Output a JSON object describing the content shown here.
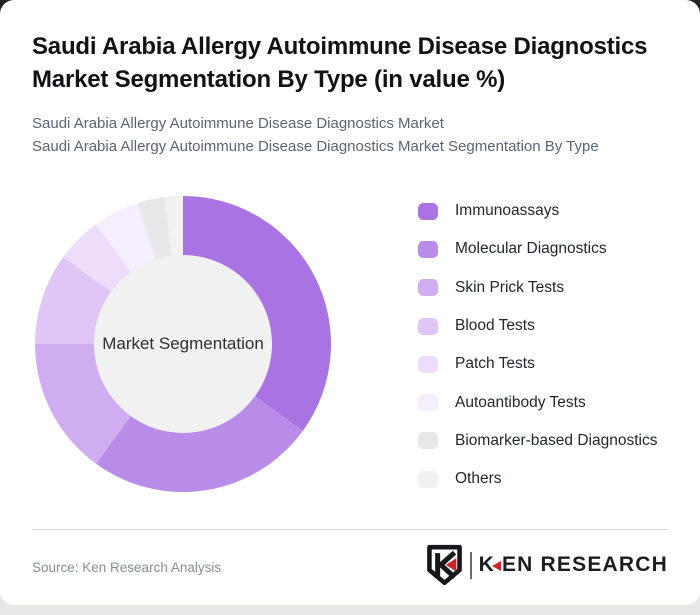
{
  "header": {
    "title": "Saudi Arabia Allergy Autoimmune Disease Diagnostics Market Segmentation By Type (in value %)",
    "subtitle_line1": "Saudi Arabia Allergy Autoimmune Disease Diagnostics Market",
    "subtitle_line2": "Saudi Arabia Allergy Autoimmune Disease Diagnostics Market Segmentation By Type"
  },
  "chart_data": {
    "type": "pie",
    "variant": "donut",
    "unit": "value %",
    "center_label": "Market Segmentation",
    "start_angle_deg": 0,
    "direction": "clockwise",
    "legend_position": "right",
    "hole_color": "#f2f1f1",
    "segments": [
      {
        "label": "Immunoassays",
        "value": 35,
        "color": "#a973e3"
      },
      {
        "label": "Molecular Diagnostics",
        "value": 25,
        "color": "#ba8ce9"
      },
      {
        "label": "Skin Prick Tests",
        "value": 15,
        "color": "#d0adf0"
      },
      {
        "label": "Blood Tests",
        "value": 10,
        "color": "#dfc6f6"
      },
      {
        "label": "Patch Tests",
        "value": 5,
        "color": "#eddcfa"
      },
      {
        "label": "Autoantibody Tests",
        "value": 5,
        "color": "#f5eefd"
      },
      {
        "label": "Biomarker-based Diagnostics",
        "value": 3,
        "color": "#e8e7e9"
      },
      {
        "label": "Others",
        "value": 2,
        "color": "#f2f1f2"
      }
    ]
  },
  "footer": {
    "source": "Source: Ken Research Analysis",
    "logo": {
      "shield_letter": "K",
      "wordmark_k": "K",
      "wordmark_rest": "EN RESEARCH",
      "accent_color": "#cc2229",
      "ink_color": "#1c1d20"
    }
  }
}
